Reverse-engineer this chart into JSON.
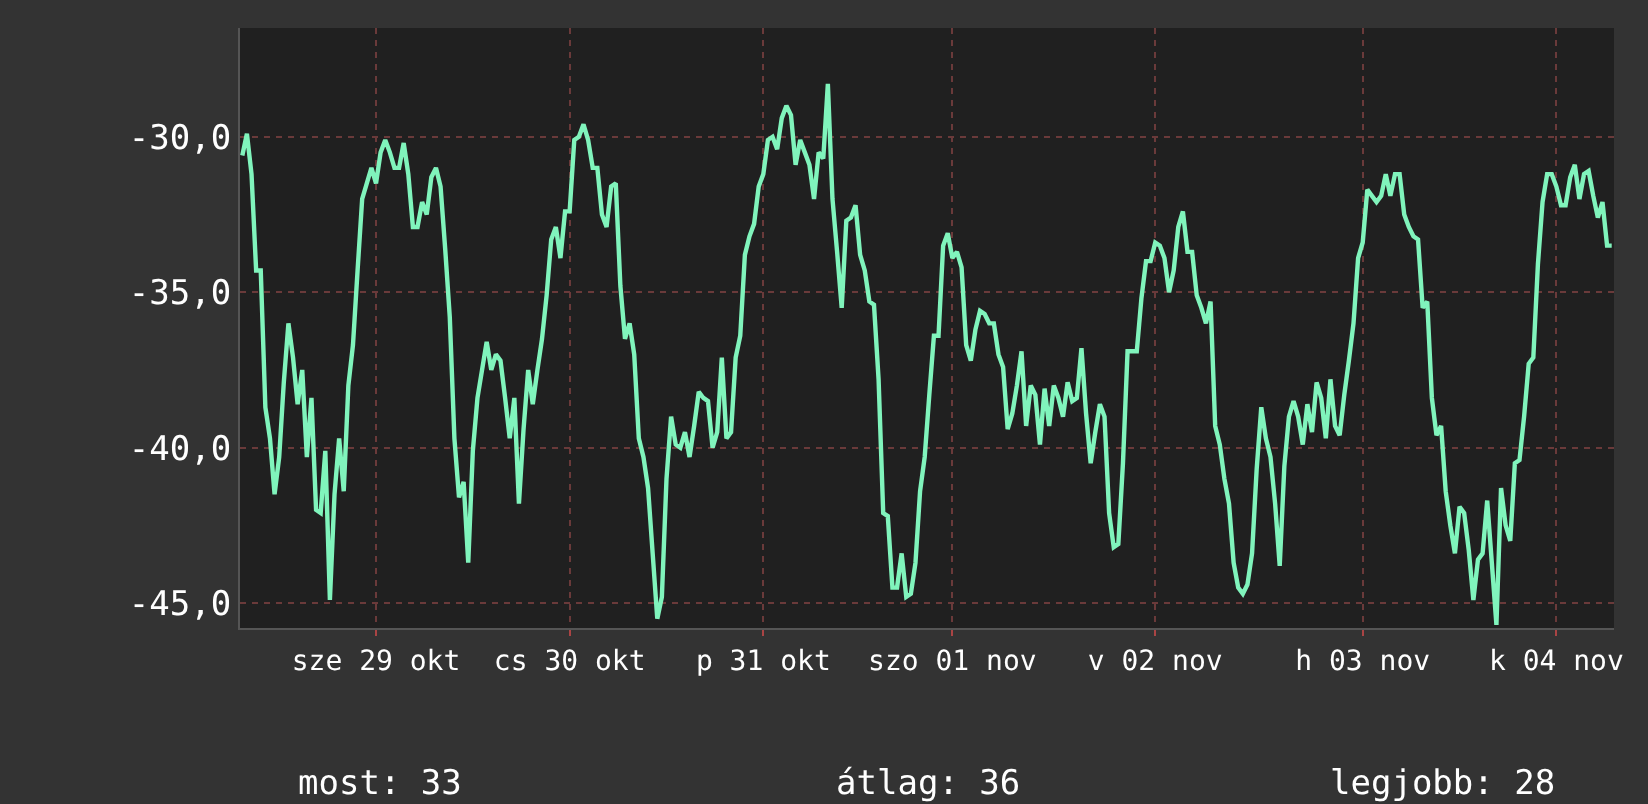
{
  "chart_data": {
    "type": "line",
    "categories": [
      null,
      null,
      null,
      null,
      null,
      null,
      null,
      null,
      null,
      null,
      null,
      null,
      null,
      null,
      null,
      null,
      null,
      null,
      null,
      null,
      null,
      null,
      null,
      null,
      null,
      null,
      null,
      null,
      null,
      "sze 29 okt",
      null,
      null,
      null,
      null,
      null,
      null,
      null,
      null,
      null,
      null,
      null,
      null,
      null,
      null,
      null,
      null,
      null,
      null,
      null,
      null,
      null,
      null,
      null,
      null,
      null,
      null,
      null,
      null,
      null,
      null,
      null,
      null,
      null,
      null,
      null,
      null,
      null,
      null,
      null,
      null,
      null,
      "cs 30 okt",
      null,
      null,
      null,
      null,
      null,
      null,
      null,
      null,
      null,
      null,
      null,
      null,
      null,
      null,
      null,
      null,
      null,
      null,
      null,
      null,
      null,
      null,
      null,
      null,
      null,
      null,
      null,
      null,
      null,
      null,
      null,
      null,
      null,
      null,
      null,
      null,
      null,
      null,
      null,
      null,
      null,
      "p 31 okt",
      null,
      null,
      null,
      null,
      null,
      null,
      null,
      null,
      null,
      null,
      null,
      null,
      null,
      null,
      null,
      null,
      null,
      null,
      null,
      null,
      null,
      null,
      null,
      null,
      null,
      null,
      null,
      null,
      null,
      null,
      null,
      null,
      null,
      null,
      null,
      null,
      null,
      null,
      null,
      null,
      "szo 01 nov",
      null,
      null,
      null,
      null,
      null,
      null,
      null,
      null,
      null,
      null,
      null,
      null,
      null,
      null,
      null,
      null,
      null,
      null,
      null,
      null,
      null,
      null,
      null,
      null,
      null,
      null,
      null,
      null,
      null,
      null,
      null,
      null,
      null,
      null,
      null,
      null,
      null,
      null,
      null,
      null,
      null,
      null,
      null,
      "v 02 nov",
      null,
      null,
      null,
      null,
      null,
      null,
      null,
      null,
      null,
      null,
      null,
      null,
      null,
      null,
      null,
      null,
      null,
      null,
      null,
      null,
      null,
      null,
      null,
      null,
      null,
      null,
      null,
      null,
      null,
      null,
      null,
      null,
      null,
      null,
      null,
      null,
      null,
      null,
      null,
      null,
      null,
      null,
      null,
      null,
      "h 03 nov",
      null,
      null,
      null,
      null,
      null,
      null,
      null,
      null,
      null,
      null,
      null,
      null,
      null,
      null,
      null,
      null,
      null,
      null,
      null,
      null,
      null,
      null,
      null,
      null,
      null,
      null,
      null,
      null,
      null,
      null,
      null,
      null,
      null,
      null,
      null,
      null,
      null,
      null,
      null,
      null,
      null,
      "k 04 nov",
      null,
      null,
      null,
      null,
      null,
      null,
      null,
      null,
      null,
      null,
      null,
      null
    ],
    "series": [
      {
        "color": "#80f4bc",
        "values": [
          -30.6,
          -29.9,
          -31.2,
          -34.3,
          -34.3,
          -38.7,
          -39.7,
          -41.5,
          -40.3,
          -37.9,
          -36.0,
          -37.1,
          -38.6,
          -37.5,
          -40.3,
          -38.4,
          -42.0,
          -42.1,
          -40.1,
          -44.9,
          -41.5,
          -39.7,
          -41.4,
          -38.0,
          -36.7,
          -34.3,
          -32.0,
          -31.5,
          -31.0,
          -31.5,
          -30.5,
          -30.1,
          -30.5,
          -31.0,
          -31.0,
          -30.2,
          -31.2,
          -32.9,
          -32.9,
          -32.1,
          -32.5,
          -31.3,
          -31.0,
          -31.6,
          -33.6,
          -35.8,
          -39.7,
          -41.6,
          -41.1,
          -43.7,
          -40.1,
          -38.4,
          -37.5,
          -36.6,
          -37.5,
          -37.0,
          -37.2,
          -38.4,
          -39.7,
          -38.4,
          -41.8,
          -39.4,
          -37.5,
          -38.6,
          -37.5,
          -36.5,
          -35.1,
          -33.3,
          -32.9,
          -33.9,
          -32.4,
          -32.4,
          -30.1,
          -30.0,
          -29.6,
          -30.1,
          -31.0,
          -31.0,
          -32.5,
          -32.9,
          -31.6,
          -31.5,
          -34.8,
          -36.5,
          -36.0,
          -37.0,
          -39.7,
          -40.3,
          -41.3,
          -43.4,
          -45.5,
          -44.8,
          -41.0,
          -39.0,
          -39.9,
          -40.0,
          -39.5,
          -40.3,
          -39.3,
          -38.2,
          -38.4,
          -38.5,
          -40.0,
          -39.5,
          -37.1,
          -39.7,
          -39.5,
          -37.1,
          -36.4,
          -33.8,
          -33.2,
          -32.8,
          -31.6,
          -31.2,
          -30.1,
          -30.0,
          -30.4,
          -29.4,
          -29.0,
          -29.3,
          -30.9,
          -30.1,
          -30.5,
          -30.9,
          -32.0,
          -30.5,
          -30.7,
          -28.3,
          -32.0,
          -33.7,
          -35.5,
          -32.7,
          -32.6,
          -32.2,
          -33.8,
          -34.3,
          -35.3,
          -35.4,
          -37.8,
          -42.1,
          -42.2,
          -44.5,
          -44.5,
          -43.4,
          -44.8,
          -44.7,
          -43.7,
          -41.4,
          -40.3,
          -38.3,
          -36.4,
          -36.4,
          -33.5,
          -33.1,
          -33.9,
          -33.7,
          -34.2,
          -36.7,
          -37.2,
          -36.2,
          -35.6,
          -35.7,
          -36.0,
          -36.0,
          -37.0,
          -37.4,
          -39.4,
          -38.9,
          -38.0,
          -36.9,
          -39.3,
          -38.0,
          -38.3,
          -39.9,
          -38.1,
          -39.3,
          -38.0,
          -38.4,
          -39.0,
          -37.9,
          -38.5,
          -38.4,
          -36.8,
          -38.9,
          -40.5,
          -39.5,
          -38.6,
          -39.0,
          -42.1,
          -43.2,
          -43.1,
          -40.5,
          -36.9,
          -36.9,
          -36.9,
          -35.2,
          -34.0,
          -34.0,
          -33.4,
          -33.5,
          -33.9,
          -35.0,
          -34.3,
          -32.9,
          -32.4,
          -33.7,
          -33.7,
          -35.1,
          -35.5,
          -36.0,
          -35.3,
          -39.3,
          -39.9,
          -41.0,
          -41.8,
          -43.7,
          -44.5,
          -44.7,
          -44.4,
          -43.4,
          -40.7,
          -38.7,
          -39.7,
          -40.3,
          -41.8,
          -43.8,
          -40.6,
          -39.0,
          -38.5,
          -39.0,
          -39.9,
          -38.6,
          -39.5,
          -37.9,
          -38.4,
          -39.7,
          -37.8,
          -39.3,
          -39.6,
          -38.3,
          -37.2,
          -36.0,
          -33.9,
          -33.4,
          -31.7,
          -31.9,
          -32.1,
          -31.9,
          -31.2,
          -31.9,
          -31.2,
          -31.2,
          -32.5,
          -32.9,
          -33.2,
          -33.3,
          -35.5,
          -35.3,
          -38.4,
          -39.6,
          -39.3,
          -41.4,
          -42.5,
          -43.4,
          -41.9,
          -42.1,
          -43.3,
          -44.9,
          -43.6,
          -43.4,
          -41.7,
          -43.7,
          -45.7,
          -41.3,
          -42.5,
          -43.0,
          -40.5,
          -40.4,
          -39.0,
          -37.3,
          -37.1,
          -34.1,
          -32.1,
          -31.2,
          -31.2,
          -31.6,
          -32.2,
          -32.2,
          -31.3,
          -30.9,
          -32.0,
          -31.2,
          -31.1,
          -31.9,
          -32.6,
          -32.1,
          -33.5,
          -33.5
        ]
      }
    ],
    "ylim": [
      -45.8,
      -26.5
    ],
    "yticks": [
      {
        "value": -30,
        "label": "-30,0"
      },
      {
        "value": -35,
        "label": "-35,0"
      },
      {
        "value": -40,
        "label": "-40,0"
      },
      {
        "value": -45,
        "label": "-45,0"
      }
    ],
    "grid": true,
    "marker": "none",
    "line_style": "solid",
    "annotations": [
      "most: 33",
      "átlag: 36",
      "legjobb: 28"
    ]
  }
}
